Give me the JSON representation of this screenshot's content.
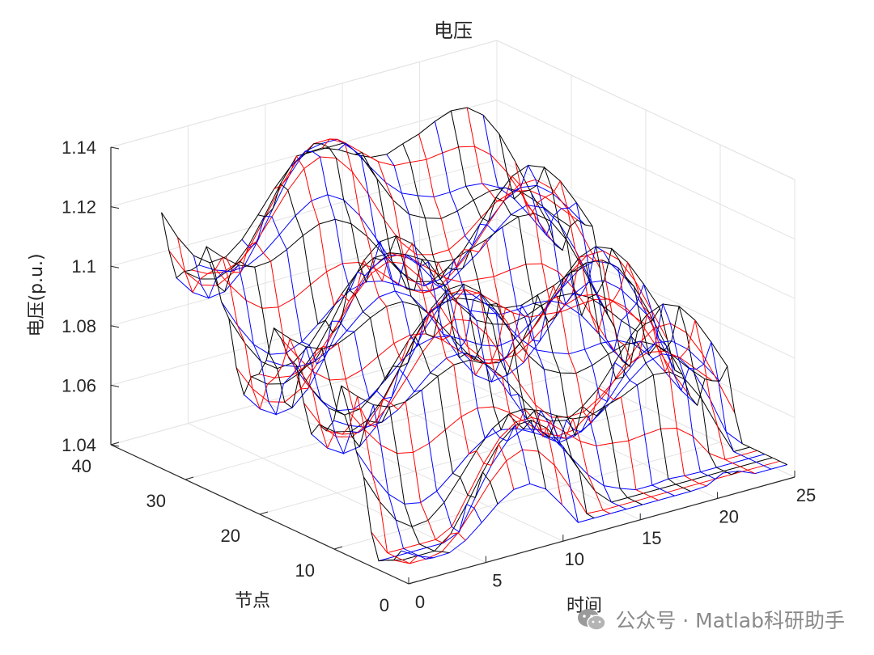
{
  "chart_data": {
    "type": "surface3d",
    "title": "电压",
    "xlabel": "时间",
    "ylabel": "节点",
    "zlabel": "电压(p.u.)",
    "xlim": [
      0,
      25
    ],
    "ylim": [
      0,
      40
    ],
    "zlim": [
      1.04,
      1.14
    ],
    "xticks": [
      0,
      5,
      10,
      15,
      20,
      25
    ],
    "yticks": [
      0,
      10,
      20,
      30,
      40
    ],
    "zticks": [
      1.04,
      1.06,
      1.08,
      1.1,
      1.12,
      1.14
    ],
    "grid": true,
    "nodes_per_profile": 33,
    "time_steps": 24,
    "series": [
      {
        "color": "#000000",
        "profile": [
          1.138,
          1.137,
          1.136,
          1.134,
          1.132,
          1.128,
          1.125,
          1.123,
          1.12,
          1.121,
          1.122,
          1.123,
          1.125,
          1.128,
          1.13,
          1.128,
          1.125,
          1.122,
          1.125,
          1.12,
          1.114,
          1.108,
          1.101,
          1.101,
          1.1
        ]
      },
      {
        "color": "#ff0000",
        "profile": [
          1.136,
          1.135,
          1.134,
          1.132,
          1.129,
          1.125,
          1.121,
          1.118,
          1.116,
          1.117,
          1.118,
          1.119,
          1.121,
          1.124,
          1.127,
          1.124,
          1.121,
          1.118,
          1.122,
          1.116,
          1.11,
          1.104,
          1.098,
          1.097,
          1.096
        ]
      },
      {
        "color": "#0000ff",
        "profile": [
          1.134,
          1.133,
          1.132,
          1.13,
          1.127,
          1.123,
          1.119,
          1.116,
          1.114,
          1.115,
          1.116,
          1.117,
          1.119,
          1.122,
          1.125,
          1.122,
          1.119,
          1.116,
          1.12,
          1.114,
          1.108,
          1.102,
          1.096,
          1.095,
          1.094
        ]
      }
    ]
  },
  "watermark": {
    "text": "公众号 · Matlab科研助手"
  }
}
